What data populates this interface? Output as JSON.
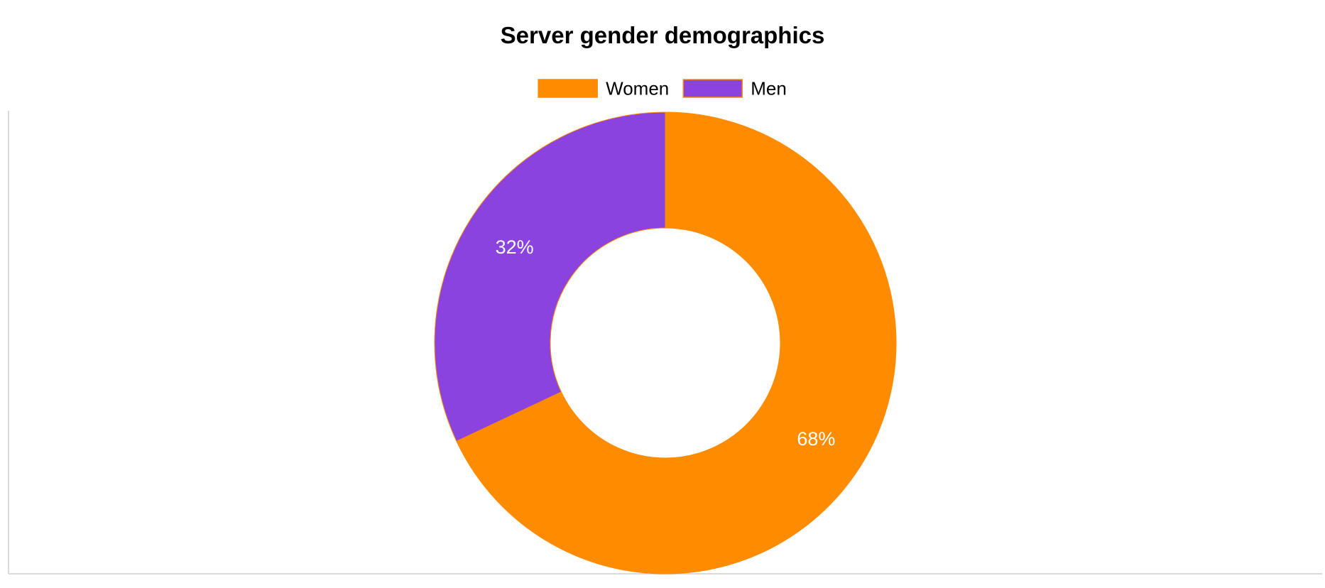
{
  "chart_data": {
    "type": "pie",
    "variant": "doughnut",
    "title": "Server gender demographics",
    "legend_position": "top",
    "categories": [
      "Women",
      "Men"
    ],
    "values": [
      68,
      32
    ],
    "unit": "%",
    "colors": [
      "#FF8C00",
      "#8A43DE"
    ],
    "border_color": "#FF8C00",
    "data_labels": [
      "68%",
      "32%"
    ]
  }
}
